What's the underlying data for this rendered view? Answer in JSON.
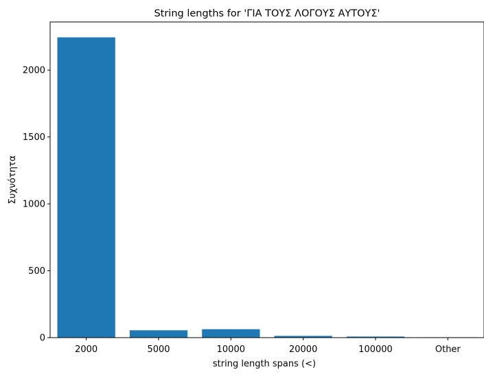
{
  "chart_data": {
    "type": "bar",
    "title": "String lengths for 'ΓΙΑ ΤΟΥΣ ΛΟΓΟΥΣ ΑΥΤΟΥΣ'",
    "xlabel": "string length spans (<)",
    "ylabel": "Συχνότητα",
    "categories": [
      "2000",
      "5000",
      "10000",
      "20000",
      "100000",
      "Other"
    ],
    "values": [
      2245,
      55,
      63,
      13,
      8,
      3
    ],
    "ylim": [
      0,
      2360
    ],
    "yticks": [
      0,
      500,
      1000,
      1500,
      2000
    ],
    "bar_color": "#1f77b4",
    "grid": false,
    "legend": "none"
  }
}
